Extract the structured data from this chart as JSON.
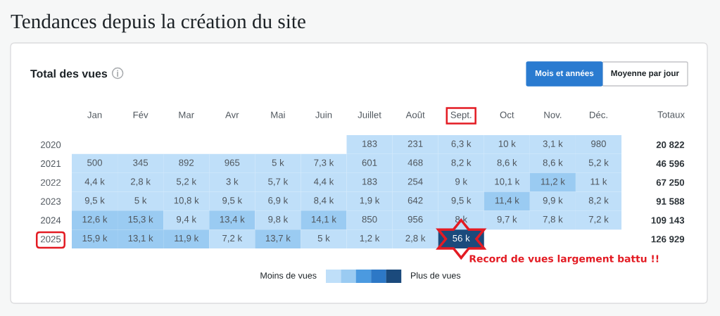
{
  "chart_data": {
    "type": "heatmap",
    "title": "Tendances depuis la création du site",
    "subtitle": "Total des vues",
    "categories": [
      "Jan",
      "Fév",
      "Mar",
      "Avr",
      "Mai",
      "Juin",
      "Juillet",
      "Août",
      "Sept.",
      "Oct",
      "Nov.",
      "Déc."
    ],
    "y_categories": [
      "2020",
      "2021",
      "2022",
      "2023",
      "2024",
      "2025"
    ],
    "y2_categories": [
      "20 822",
      "46 596",
      "67 250",
      "91 588",
      "109 143",
      "126 929"
    ],
    "y2label": "Totaux",
    "cells": [
      [
        null,
        null,
        null,
        null,
        null,
        null,
        183,
        231,
        6300,
        10000,
        3100,
        980
      ],
      [
        500,
        345,
        892,
        965,
        5000,
        7300,
        601,
        468,
        8200,
        8600,
        8600,
        5200
      ],
      [
        4400,
        2800,
        5200,
        3000,
        5700,
        4400,
        183,
        254,
        9000,
        10100,
        11200,
        11000
      ],
      [
        9500,
        5000,
        10800,
        9500,
        6900,
        8400,
        1900,
        642,
        9500,
        11400,
        9900,
        8200
      ],
      [
        12600,
        15300,
        9400,
        13400,
        9800,
        14100,
        850,
        956,
        8000,
        9700,
        7800,
        7200
      ],
      [
        15900,
        13100,
        11900,
        7200,
        13700,
        5000,
        1200,
        2800,
        56000,
        null,
        null,
        null
      ]
    ],
    "cell_labels": [
      [
        null,
        null,
        null,
        null,
        null,
        null,
        "183",
        "231",
        "6,3 k",
        "10 k",
        "3,1 k",
        "980"
      ],
      [
        "500",
        "345",
        "892",
        "965",
        "5 k",
        "7,3 k",
        "601",
        "468",
        "8,2 k",
        "8,6 k",
        "8,6 k",
        "5,2 k"
      ],
      [
        "4,4 k",
        "2,8 k",
        "5,2 k",
        "3 k",
        "5,7 k",
        "4,4 k",
        "183",
        "254",
        "9 k",
        "10,1 k",
        "11,2 k",
        "11 k"
      ],
      [
        "9,5 k",
        "5 k",
        "10,8 k",
        "9,5 k",
        "6,9 k",
        "8,4 k",
        "1,9 k",
        "642",
        "9,5 k",
        "11,4 k",
        "9,9 k",
        "8,2 k"
      ],
      [
        "12,6 k",
        "15,3 k",
        "9,4 k",
        "13,4 k",
        "9,8 k",
        "14,1 k",
        "850",
        "956",
        "8 k",
        "9,7 k",
        "7,8 k",
        "7,2 k"
      ],
      [
        "15,9 k",
        "13,1 k",
        "11,9 k",
        "7,2 k",
        "13,7 k",
        "5 k",
        "1,2 k",
        "2,8 k",
        "56 k",
        null,
        null,
        null
      ]
    ],
    "colors": [
      "#bfdff9",
      "#9acbf2",
      "#4b9ae0",
      "#2d78c6",
      "#1b4a7c"
    ],
    "annotations": [
      "Mois et années",
      "Moyenne par jour",
      "Moins de vues",
      "Plus de vues",
      "Record de vues largement battu !!"
    ]
  }
}
